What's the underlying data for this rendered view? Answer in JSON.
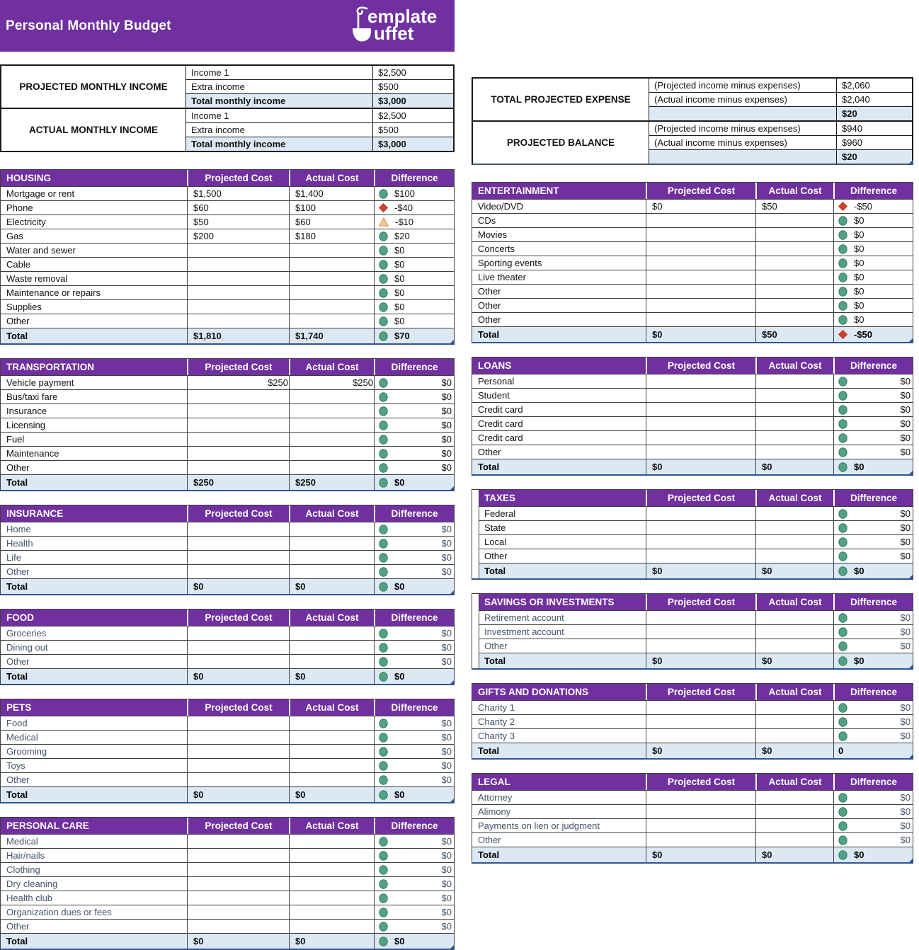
{
  "banner": {
    "title": "Personal Monthly Budget",
    "logo": {
      "line1": "emplate",
      "line2": "uffet",
      "icon": "ladle-icon"
    }
  },
  "colors": {
    "brand_purple": "#7030A0",
    "total_row_blue": "#DCE9F5",
    "status_good": "#53A183",
    "status_bad": "#D2402E",
    "status_warning": "#F3CA8A",
    "slate_label": "#44546A",
    "accent_navy": "#2F5496"
  },
  "column_headers": {
    "projected": "Projected Cost",
    "actual": "Actual Cost",
    "difference": "Difference"
  },
  "income_tables": [
    {
      "label": "PROJECTED MONTHLY INCOME",
      "rows": [
        {
          "desc": "Income 1",
          "value": "$2,500",
          "total": false
        },
        {
          "desc": "Extra income",
          "value": "$500",
          "total": false
        },
        {
          "desc": "Total monthly income",
          "value": "$3,000",
          "total": true
        }
      ]
    },
    {
      "label": "ACTUAL MONTHLY INCOME",
      "rows": [
        {
          "desc": "Income 1",
          "value": "$2,500",
          "total": false
        },
        {
          "desc": "Extra income",
          "value": "$500",
          "total": false
        },
        {
          "desc": "Total monthly income",
          "value": "$3,000",
          "total": true
        }
      ]
    }
  ],
  "balance_tables": [
    {
      "label": "TOTAL PROJECTED EXPENSE",
      "rows": [
        {
          "desc": "(Projected income minus expenses)",
          "value": "$2,060",
          "total": false
        },
        {
          "desc": "(Actual income minus expenses)",
          "value": "$2,040",
          "total": false
        },
        {
          "desc": "",
          "value": "$20",
          "total": true
        }
      ]
    },
    {
      "label": "PROJECTED BALANCE",
      "rows": [
        {
          "desc": "(Projected income minus expenses)",
          "value": "$940",
          "total": false
        },
        {
          "desc": "(Actual income minus expenses)",
          "value": "$960",
          "total": false
        },
        {
          "desc": "",
          "value": "$20",
          "total": true
        }
      ]
    }
  ],
  "sections_left": [
    {
      "title": "HOUSING",
      "label_style": "black",
      "diff_align": "left",
      "sliver": false,
      "rows": [
        {
          "label": "Mortgage or rent",
          "projected": "$1,500",
          "actual": "$1,400",
          "icon": "circle",
          "diff": "$100",
          "num_align": "left"
        },
        {
          "label": "Phone",
          "projected": "$60",
          "actual": "$100",
          "icon": "diamond",
          "diff": "-$40",
          "num_align": "left"
        },
        {
          "label": "Electricity",
          "projected": "$50",
          "actual": "$60",
          "icon": "triangle",
          "diff": "-$10",
          "num_align": "left"
        },
        {
          "label": "Gas",
          "projected": "$200",
          "actual": "$180",
          "icon": "circle",
          "diff": "$20",
          "num_align": "left"
        },
        {
          "label": "Water and sewer",
          "projected": "",
          "actual": "",
          "icon": "circle",
          "diff": "$0",
          "num_align": "left"
        },
        {
          "label": "Cable",
          "projected": "",
          "actual": "",
          "icon": "circle",
          "diff": "$0",
          "num_align": "left"
        },
        {
          "label": "Waste removal",
          "projected": "",
          "actual": "",
          "icon": "circle",
          "diff": "$0",
          "num_align": "left"
        },
        {
          "label": "Maintenance or repairs",
          "projected": "",
          "actual": "",
          "icon": "circle",
          "diff": "$0",
          "num_align": "left"
        },
        {
          "label": "Supplies",
          "projected": "",
          "actual": "",
          "icon": "circle",
          "diff": "$0",
          "num_align": "left"
        },
        {
          "label": "Other",
          "projected": "",
          "actual": "",
          "icon": "circle",
          "diff": "$0",
          "num_align": "left"
        }
      ],
      "total": {
        "label": "Total",
        "projected": "$1,810",
        "actual": "$1,740",
        "icon": "circle",
        "diff": "$70"
      }
    },
    {
      "title": "TRANSPORTATION",
      "label_style": "black",
      "diff_align": "right",
      "sliver": false,
      "rows": [
        {
          "label": "Vehicle payment",
          "projected": "$250",
          "actual": "$250",
          "icon": "circle",
          "diff": "$0",
          "num_align": "right"
        },
        {
          "label": "Bus/taxi fare",
          "projected": "",
          "actual": "",
          "icon": "circle",
          "diff": "$0",
          "num_align": "left"
        },
        {
          "label": "Insurance",
          "projected": "",
          "actual": "",
          "icon": "circle",
          "diff": "$0",
          "num_align": "left"
        },
        {
          "label": "Licensing",
          "projected": "",
          "actual": "",
          "icon": "circle",
          "diff": "$0",
          "num_align": "left"
        },
        {
          "label": "Fuel",
          "projected": "",
          "actual": "",
          "icon": "circle",
          "diff": "$0",
          "num_align": "left"
        },
        {
          "label": "Maintenance",
          "projected": "",
          "actual": "",
          "icon": "circle",
          "diff": "$0",
          "num_align": "left"
        },
        {
          "label": "Other",
          "projected": "",
          "actual": "",
          "icon": "circle",
          "diff": "$0",
          "num_align": "left"
        }
      ],
      "total": {
        "label": "Total",
        "projected": "$250",
        "actual": "$250",
        "icon": "circle",
        "diff": "$0"
      }
    },
    {
      "title": "INSURANCE",
      "label_style": "slate",
      "diff_align": "right",
      "sliver": false,
      "rows": [
        {
          "label": "Home",
          "projected": "",
          "actual": "",
          "icon": "circle",
          "diff": "$0",
          "num_align": "left"
        },
        {
          "label": "Health",
          "projected": "",
          "actual": "",
          "icon": "circle",
          "diff": "$0",
          "num_align": "left"
        },
        {
          "label": "Life",
          "projected": "",
          "actual": "",
          "icon": "circle",
          "diff": "$0",
          "num_align": "left"
        },
        {
          "label": "Other",
          "projected": "",
          "actual": "",
          "icon": "circle",
          "diff": "$0",
          "num_align": "left"
        }
      ],
      "total": {
        "label": "Total",
        "projected": "$0",
        "actual": "$0",
        "icon": "circle",
        "diff": "$0"
      }
    },
    {
      "title": "FOOD",
      "label_style": "slate",
      "diff_align": "right",
      "sliver": false,
      "rows": [
        {
          "label": "Groceries",
          "projected": "",
          "actual": "",
          "icon": "circle",
          "diff": "$0",
          "num_align": "left"
        },
        {
          "label": "Dining out",
          "projected": "",
          "actual": "",
          "icon": "circle",
          "diff": "$0",
          "num_align": "left"
        },
        {
          "label": "Other",
          "projected": "",
          "actual": "",
          "icon": "circle",
          "diff": "$0",
          "num_align": "left"
        }
      ],
      "total": {
        "label": "Total",
        "projected": "$0",
        "actual": "$0",
        "icon": "circle",
        "diff": "$0"
      }
    },
    {
      "title": "PETS",
      "label_style": "slate",
      "diff_align": "right",
      "sliver": false,
      "rows": [
        {
          "label": "Food",
          "projected": "",
          "actual": "",
          "icon": "circle",
          "diff": "$0",
          "num_align": "left"
        },
        {
          "label": "Medical",
          "projected": "",
          "actual": "",
          "icon": "circle",
          "diff": "$0",
          "num_align": "left"
        },
        {
          "label": "Grooming",
          "projected": "",
          "actual": "",
          "icon": "circle",
          "diff": "$0",
          "num_align": "left"
        },
        {
          "label": "Toys",
          "projected": "",
          "actual": "",
          "icon": "circle",
          "diff": "$0",
          "num_align": "left"
        },
        {
          "label": "Other",
          "projected": "",
          "actual": "",
          "icon": "circle",
          "diff": "$0",
          "num_align": "left"
        }
      ],
      "total": {
        "label": "Total",
        "projected": "$0",
        "actual": "$0",
        "icon": "circle",
        "diff": "$0"
      }
    },
    {
      "title": "PERSONAL CARE",
      "label_style": "slate",
      "diff_align": "right",
      "sliver": false,
      "rows": [
        {
          "label": "Medical",
          "projected": "",
          "actual": "",
          "icon": "circle",
          "diff": "$0",
          "num_align": "left"
        },
        {
          "label": "Hair/nails",
          "projected": "",
          "actual": "",
          "icon": "circle",
          "diff": "$0",
          "num_align": "left"
        },
        {
          "label": "Clothing",
          "projected": "",
          "actual": "",
          "icon": "circle",
          "diff": "$0",
          "num_align": "left"
        },
        {
          "label": "Dry cleaning",
          "projected": "",
          "actual": "",
          "icon": "circle",
          "diff": "$0",
          "num_align": "left"
        },
        {
          "label": "Health club",
          "projected": "",
          "actual": "",
          "icon": "circle",
          "diff": "$0",
          "num_align": "left"
        },
        {
          "label": "Organization dues or fees",
          "projected": "",
          "actual": "",
          "icon": "circle",
          "diff": "$0",
          "num_align": "left"
        },
        {
          "label": "Other",
          "projected": "",
          "actual": "",
          "icon": "circle",
          "diff": "$0",
          "num_align": "left"
        }
      ],
      "total": {
        "label": "Total",
        "projected": "$0",
        "actual": "$0",
        "icon": "circle",
        "diff": "$0"
      }
    }
  ],
  "sections_right": [
    {
      "title": "ENTERTAINMENT",
      "label_style": "black",
      "diff_align": "left",
      "sliver": false,
      "rows": [
        {
          "label": "Video/DVD",
          "projected": "$0",
          "actual": "$50",
          "icon": "diamond",
          "diff": "-$50",
          "num_align": "left"
        },
        {
          "label": "CDs",
          "projected": "",
          "actual": "",
          "icon": "circle",
          "diff": "$0",
          "num_align": "left"
        },
        {
          "label": "Movies",
          "projected": "",
          "actual": "",
          "icon": "circle",
          "diff": "$0",
          "num_align": "left"
        },
        {
          "label": "Concerts",
          "projected": "",
          "actual": "",
          "icon": "circle",
          "diff": "$0",
          "num_align": "left"
        },
        {
          "label": "Sporting events",
          "projected": "",
          "actual": "",
          "icon": "circle",
          "diff": "$0",
          "num_align": "left"
        },
        {
          "label": "Live theater",
          "projected": "",
          "actual": "",
          "icon": "circle",
          "diff": "$0",
          "num_align": "left"
        },
        {
          "label": "Other",
          "projected": "",
          "actual": "",
          "icon": "circle",
          "diff": "$0",
          "num_align": "left"
        },
        {
          "label": "Other",
          "projected": "",
          "actual": "",
          "icon": "circle",
          "diff": "$0",
          "num_align": "left"
        },
        {
          "label": "Other",
          "projected": "",
          "actual": "",
          "icon": "circle",
          "diff": "$0",
          "num_align": "left"
        }
      ],
      "total": {
        "label": "Total",
        "projected": "$0",
        "actual": "$50",
        "icon": "diamond",
        "diff": "-$50"
      }
    },
    {
      "title": "LOANS",
      "label_style": "black",
      "diff_align": "right",
      "sliver": false,
      "rows": [
        {
          "label": "Personal",
          "projected": "",
          "actual": "",
          "icon": "circle",
          "diff": "$0",
          "num_align": "left"
        },
        {
          "label": "Student",
          "projected": "",
          "actual": "",
          "icon": "circle",
          "diff": "$0",
          "num_align": "left"
        },
        {
          "label": "Credit card",
          "projected": "",
          "actual": "",
          "icon": "circle",
          "diff": "$0",
          "num_align": "left"
        },
        {
          "label": "Credit card",
          "projected": "",
          "actual": "",
          "icon": "circle",
          "diff": "$0",
          "num_align": "left"
        },
        {
          "label": "Credit card",
          "projected": "",
          "actual": "",
          "icon": "circle",
          "diff": "$0",
          "num_align": "left"
        },
        {
          "label": "Other",
          "projected": "",
          "actual": "",
          "icon": "circle",
          "diff": "$0",
          "num_align": "left"
        }
      ],
      "total": {
        "label": "Total",
        "projected": "$0",
        "actual": "$0",
        "icon": "circle",
        "diff": "$0"
      }
    },
    {
      "title": "TAXES",
      "label_style": "black",
      "diff_align": "right",
      "sliver": true,
      "rows": [
        {
          "label": "Federal",
          "projected": "",
          "actual": "",
          "icon": "circle",
          "diff": "$0",
          "num_align": "left"
        },
        {
          "label": "State",
          "projected": "",
          "actual": "",
          "icon": "circle",
          "diff": "$0",
          "num_align": "left"
        },
        {
          "label": "Local",
          "projected": "",
          "actual": "",
          "icon": "circle",
          "diff": "$0",
          "num_align": "left"
        },
        {
          "label": "Other",
          "projected": "",
          "actual": "",
          "icon": "circle",
          "diff": "$0",
          "num_align": "left"
        }
      ],
      "total": {
        "label": "Total",
        "projected": "$0",
        "actual": "$0",
        "icon": "circle",
        "diff": "$0"
      }
    },
    {
      "title": "SAVINGS OR INVESTMENTS",
      "label_style": "slate",
      "diff_align": "right",
      "sliver": true,
      "rows": [
        {
          "label": "Retirement account",
          "projected": "",
          "actual": "",
          "icon": "circle",
          "diff": "$0",
          "num_align": "left"
        },
        {
          "label": "Investment account",
          "projected": "",
          "actual": "",
          "icon": "circle",
          "diff": "$0",
          "num_align": "left"
        },
        {
          "label": "Other",
          "projected": "",
          "actual": "",
          "icon": "circle",
          "diff": "$0",
          "num_align": "left"
        }
      ],
      "total": {
        "label": "Total",
        "projected": "$0",
        "actual": "$0",
        "icon": "circle",
        "diff": "$0"
      }
    },
    {
      "title": "GIFTS AND DONATIONS",
      "label_style": "slate",
      "diff_align": "right",
      "sliver": false,
      "rows": [
        {
          "label": "Charity 1",
          "projected": "",
          "actual": "",
          "icon": "circle",
          "diff": "$0",
          "num_align": "left"
        },
        {
          "label": "Charity 2",
          "projected": "",
          "actual": "",
          "icon": "circle",
          "diff": "$0",
          "num_align": "left"
        },
        {
          "label": "Charity 3",
          "projected": "",
          "actual": "",
          "icon": "circle",
          "diff": "$0",
          "num_align": "left"
        }
      ],
      "total": {
        "label": "Total",
        "projected": "$0",
        "actual": "$0",
        "icon": null,
        "diff": "0"
      }
    },
    {
      "title": "LEGAL",
      "label_style": "slate",
      "diff_align": "right",
      "sliver": false,
      "rows": [
        {
          "label": "Attorney",
          "projected": "",
          "actual": "",
          "icon": "circle",
          "diff": "$0",
          "num_align": "left"
        },
        {
          "label": "Alimony",
          "projected": "",
          "actual": "",
          "icon": "circle",
          "diff": "$0",
          "num_align": "left"
        },
        {
          "label": "Payments on lien or judgment",
          "projected": "",
          "actual": "",
          "icon": "circle",
          "diff": "$0",
          "num_align": "left"
        },
        {
          "label": "Other",
          "projected": "",
          "actual": "",
          "icon": "circle",
          "diff": "$0",
          "num_align": "left"
        }
      ],
      "total": {
        "label": "Total",
        "projected": "$0",
        "actual": "$0",
        "icon": "circle",
        "diff": "$0"
      }
    }
  ]
}
